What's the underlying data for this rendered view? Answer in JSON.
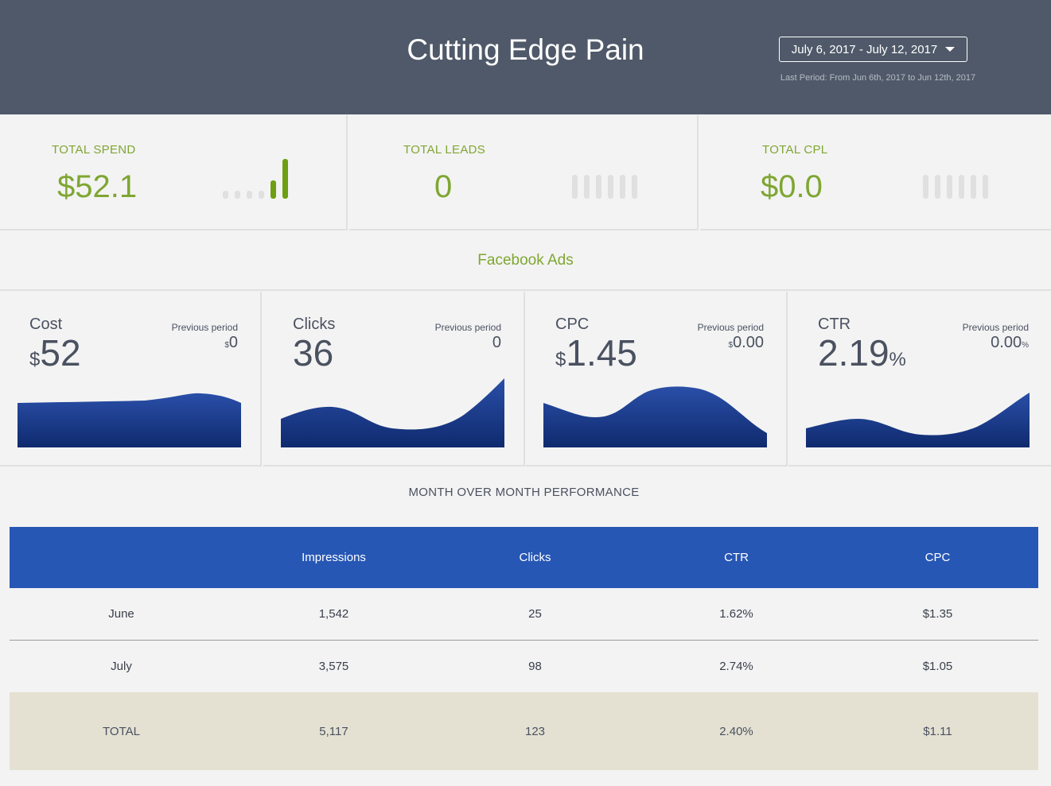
{
  "header": {
    "title": "Cutting Edge Pain",
    "date_range": "July 6, 2017 - July 12, 2017",
    "last_period": "Last Period: From Jun 6th, 2017 to Jun 12th, 2017"
  },
  "kpis": [
    {
      "label": "TOTAL SPEND",
      "value": "$52.1",
      "bars": [
        0.2,
        0.2,
        0.2,
        0.2,
        0.45,
        1.0
      ]
    },
    {
      "label": "TOTAL LEADS",
      "value": "0",
      "bars": [
        0.6,
        0.6,
        0.6,
        0.6,
        0.6,
        0.6
      ]
    },
    {
      "label": "TOTAL CPL",
      "value": "$0.0",
      "bars": [
        0.6,
        0.6,
        0.6,
        0.6,
        0.6,
        0.6
      ]
    }
  ],
  "section": {
    "title": "Facebook Ads"
  },
  "metrics": [
    {
      "name": "Cost",
      "currency": "$",
      "value": "52",
      "unit": "",
      "prev_label": "Previous period",
      "prev_prefix": "$",
      "prev_value": "0",
      "prev_suffix": ""
    },
    {
      "name": "Clicks",
      "currency": "",
      "value": "36",
      "unit": "",
      "prev_label": "Previous period",
      "prev_prefix": "",
      "prev_value": "0",
      "prev_suffix": ""
    },
    {
      "name": "CPC",
      "currency": "$",
      "value": "1.45",
      "unit": "",
      "prev_label": "Previous period",
      "prev_prefix": "$",
      "prev_value": "0.00",
      "prev_suffix": ""
    },
    {
      "name": "CTR",
      "currency": "",
      "value": "2.19",
      "unit": "%",
      "prev_label": "Previous period",
      "prev_prefix": "",
      "prev_value": "0.00",
      "prev_suffix": "%"
    }
  ],
  "mom": {
    "title": "MONTH OVER MONTH PERFORMANCE",
    "columns": [
      "",
      "Impressions",
      "Clicks",
      "CTR",
      "CPC"
    ],
    "rows": [
      [
        "June",
        "1,542",
        "25",
        "1.62%",
        "$1.35"
      ],
      [
        "July",
        "3,575",
        "98",
        "2.74%",
        "$1.05"
      ]
    ],
    "total": [
      "TOTAL",
      "5,117",
      "123",
      "2.40%",
      "$1.11"
    ]
  },
  "colors": {
    "header_bg": "#4f5969",
    "accent_green": "#7fa632",
    "table_blue": "#2757b5",
    "spark_blue": "#1d3f8f",
    "total_row": "#e4e1d3"
  }
}
